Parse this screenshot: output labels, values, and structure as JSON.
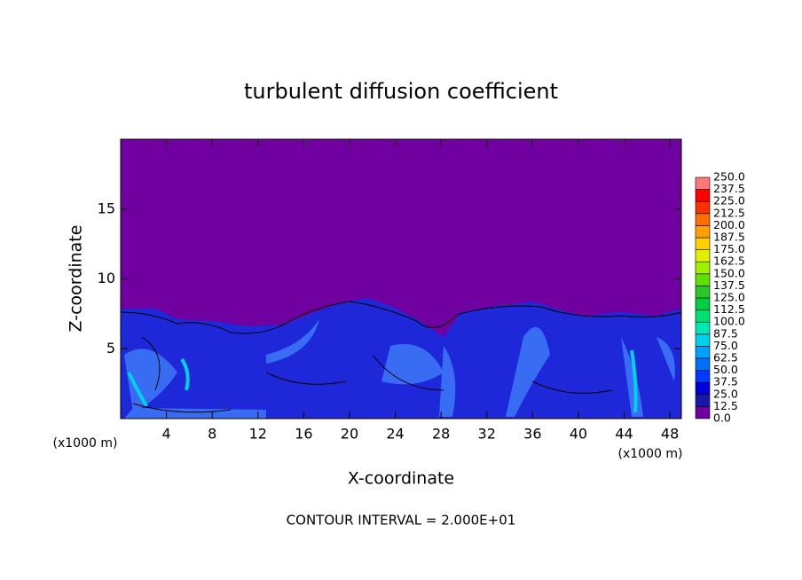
{
  "chart_data": {
    "type": "contour",
    "title": "turbulent diffusion coefficient",
    "xlabel": "X-coordinate",
    "ylabel": "Z-coordinate",
    "x_unit": "(x1000 m)",
    "footnote": "CONTOUR INTERVAL = 2.000E+01",
    "xlim": [
      0,
      49
    ],
    "ylim": [
      0,
      20
    ],
    "xticks": [
      4,
      8,
      12,
      16,
      20,
      24,
      28,
      32,
      36,
      40,
      44,
      48
    ],
    "yticks": [
      5,
      10,
      15
    ],
    "colorbar": {
      "levels": [
        {
          "value": 0,
          "label": "0.0"
        },
        {
          "value": 12.5,
          "label": "12.5"
        },
        {
          "value": 25,
          "label": "25.0"
        },
        {
          "value": 37.5,
          "label": "37.5"
        },
        {
          "value": 50,
          "label": "50.0"
        },
        {
          "value": 62.5,
          "label": "62.5"
        },
        {
          "value": 75,
          "label": "75.0"
        },
        {
          "value": 87.5,
          "label": "87.5"
        },
        {
          "value": 100,
          "label": "100.0"
        },
        {
          "value": 112.5,
          "label": "112.5"
        },
        {
          "value": 125,
          "label": "125.0"
        },
        {
          "value": 137.5,
          "label": "137.5"
        },
        {
          "value": 150,
          "label": "150.0"
        },
        {
          "value": 162.5,
          "label": "162.5"
        },
        {
          "value": 175,
          "label": "175.0"
        },
        {
          "value": 187.5,
          "label": "187.5"
        },
        {
          "value": 200,
          "label": "200.0"
        },
        {
          "value": 212.5,
          "label": "212.5"
        },
        {
          "value": 225,
          "label": "225.0"
        },
        {
          "value": 237.5,
          "label": "237.5"
        },
        {
          "value": 250,
          "label": "250.0"
        }
      ],
      "colors": [
        "#7000a0",
        "#1818a8",
        "#0000d8",
        "#0038ff",
        "#0070ff",
        "#00a0ff",
        "#00d0e8",
        "#00e8b8",
        "#00e070",
        "#00d040",
        "#28c828",
        "#60e000",
        "#a0f000",
        "#e0f000",
        "#ffd000",
        "#ffa000",
        "#ff7000",
        "#ff3000",
        "#ff0000",
        "#ff7878"
      ]
    }
  }
}
